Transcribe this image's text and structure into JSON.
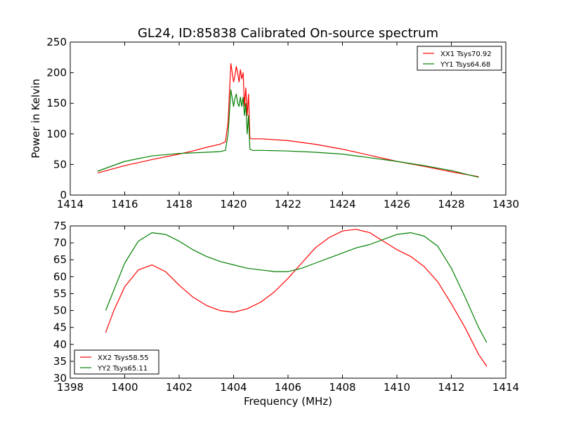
{
  "title": "GL24, ID:85838 Calibrated On-source spectrum",
  "colors": {
    "series_red": "#ff0000",
    "series_green": "#008000"
  },
  "chart_data": [
    {
      "type": "line",
      "ylabel": "Power in Kelvin",
      "xlabel": "",
      "xlim": [
        1414,
        1430
      ],
      "ylim": [
        0,
        250
      ],
      "xticks": [
        1414,
        1416,
        1418,
        1420,
        1422,
        1424,
        1426,
        1428,
        1430
      ],
      "yticks": [
        0,
        50,
        100,
        150,
        200,
        250
      ],
      "legend_position": "top-right",
      "series": [
        {
          "name": "XX1 Tsys70.92",
          "color": "#ff0000",
          "x": [
            1415.0,
            1416.0,
            1417.0,
            1418.0,
            1418.5,
            1419.0,
            1419.5,
            1419.7,
            1419.8,
            1419.9,
            1420.0,
            1420.05,
            1420.1,
            1420.15,
            1420.2,
            1420.25,
            1420.3,
            1420.35,
            1420.4,
            1420.45,
            1420.5,
            1420.55,
            1420.6,
            1420.65,
            1420.7,
            1421.0,
            1422.0,
            1423.0,
            1424.0,
            1425.0,
            1426.0,
            1427.0,
            1428.0,
            1429.0
          ],
          "y": [
            36,
            48,
            58,
            67,
            72,
            78,
            83,
            87,
            120,
            215,
            185,
            195,
            210,
            200,
            185,
            205,
            190,
            200,
            145,
            175,
            130,
            165,
            93,
            92,
            92,
            92,
            89,
            83,
            75,
            65,
            55,
            47,
            38,
            30
          ]
        },
        {
          "name": "YY1 Tsys64.68",
          "color": "#008000",
          "x": [
            1415.0,
            1416.0,
            1417.0,
            1418.0,
            1419.0,
            1419.5,
            1419.7,
            1419.8,
            1419.9,
            1420.0,
            1420.05,
            1420.1,
            1420.15,
            1420.2,
            1420.25,
            1420.3,
            1420.35,
            1420.4,
            1420.45,
            1420.5,
            1420.55,
            1420.6,
            1420.65,
            1420.7,
            1421.0,
            1422.0,
            1423.0,
            1424.0,
            1425.0,
            1426.0,
            1427.0,
            1428.0,
            1429.0
          ],
          "y": [
            39,
            55,
            64,
            68,
            70,
            71,
            73,
            100,
            172,
            145,
            158,
            165,
            150,
            145,
            160,
            145,
            160,
            130,
            150,
            100,
            130,
            75,
            74,
            73,
            73,
            72,
            70,
            67,
            61,
            55,
            48,
            40,
            29
          ]
        }
      ]
    },
    {
      "type": "line",
      "ylabel": "",
      "xlabel": "Frequency (MHz)",
      "xlim": [
        1398,
        1414
      ],
      "ylim": [
        30,
        75
      ],
      "xticks": [
        1398,
        1400,
        1402,
        1404,
        1406,
        1408,
        1410,
        1412,
        1414
      ],
      "yticks": [
        30,
        35,
        40,
        45,
        50,
        55,
        60,
        65,
        70,
        75
      ],
      "legend_position": "bottom-left",
      "series": [
        {
          "name": "XX2 Tsys58.55",
          "color": "#ff0000",
          "x": [
            1399.3,
            1399.6,
            1400.0,
            1400.5,
            1401.0,
            1401.5,
            1402.0,
            1402.5,
            1403.0,
            1403.5,
            1404.0,
            1404.5,
            1405.0,
            1405.5,
            1406.0,
            1406.5,
            1407.0,
            1407.5,
            1408.0,
            1408.5,
            1409.0,
            1409.5,
            1410.0,
            1410.5,
            1411.0,
            1411.5,
            1412.0,
            1412.5,
            1413.0,
            1413.3
          ],
          "y": [
            43.5,
            50,
            57,
            62,
            63.5,
            61.5,
            57.5,
            54,
            51.5,
            50,
            49.5,
            50.5,
            52.5,
            55.5,
            59.5,
            64,
            68.5,
            71.5,
            73.5,
            74,
            73,
            70.5,
            68,
            66,
            63,
            58.5,
            52,
            45,
            37,
            33.5
          ]
        },
        {
          "name": "YY2 Tsys65.11",
          "color": "#008000",
          "x": [
            1399.3,
            1399.6,
            1400.0,
            1400.5,
            1401.0,
            1401.5,
            1402.0,
            1402.5,
            1403.0,
            1403.5,
            1404.0,
            1404.5,
            1405.0,
            1405.5,
            1406.0,
            1406.5,
            1407.0,
            1407.5,
            1408.0,
            1408.5,
            1409.0,
            1409.5,
            1410.0,
            1410.5,
            1411.0,
            1411.5,
            1412.0,
            1412.5,
            1413.0,
            1413.3
          ],
          "y": [
            50,
            56,
            64,
            70.5,
            73,
            72.5,
            70.5,
            68,
            66,
            64.5,
            63.5,
            62.5,
            62,
            61.5,
            61.5,
            62.5,
            64,
            65.5,
            67,
            68.5,
            69.5,
            71,
            72.5,
            73,
            72,
            69,
            62.5,
            54,
            45,
            40.5
          ]
        }
      ]
    }
  ]
}
